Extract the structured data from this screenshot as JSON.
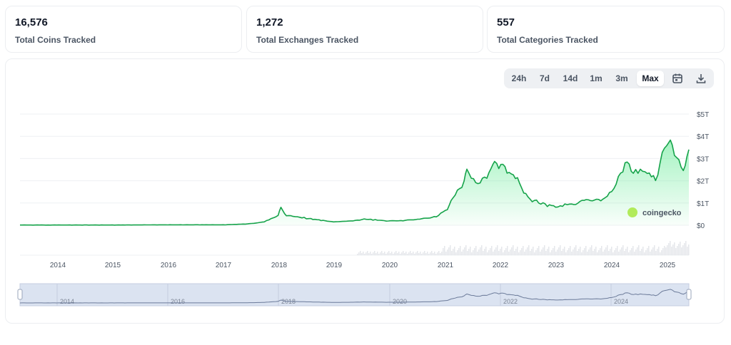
{
  "stats": [
    {
      "value": "16,576",
      "label": "Total Coins Tracked"
    },
    {
      "value": "1,272",
      "label": "Total Exchanges Tracked"
    },
    {
      "value": "557",
      "label": "Total Categories Tracked"
    }
  ],
  "toolbar": {
    "ranges": [
      "24h",
      "7d",
      "14d",
      "1m",
      "3m",
      "Max"
    ],
    "active": "Max",
    "icons": [
      "calendar-icon",
      "download-icon"
    ]
  },
  "watermark": {
    "text": "coingecko",
    "icon": "gecko-logo-icon"
  },
  "colors": {
    "line": "#16a34a",
    "fill": "#86efac",
    "navigator_bg": "#dbe3f1",
    "grid": "#eef0f3"
  },
  "chart_data": {
    "type": "area",
    "title": "",
    "xlabel": "",
    "ylabel": "",
    "y_unit": "USD",
    "ylim": [
      0,
      5
    ],
    "y_tick_labels": [
      "$0",
      "$1T",
      "$2T",
      "$3T",
      "$4T",
      "$5T"
    ],
    "x_tick_labels": [
      "2014",
      "2015",
      "2016",
      "2017",
      "2018",
      "2019",
      "2020",
      "2021",
      "2022",
      "2023",
      "2024",
      "2025"
    ],
    "grid": true,
    "legend": "none",
    "series": [
      {
        "x": [
          2013.3,
          2014.0,
          2015.0,
          2016.0,
          2017.0,
          2017.4,
          2017.7,
          2017.95,
          2018.0,
          2018.1,
          2018.5,
          2018.95,
          2019.3,
          2019.5,
          2019.9,
          2020.2,
          2020.5,
          2020.8,
          2021.0,
          2021.1,
          2021.3,
          2021.35,
          2021.55,
          2021.75,
          2021.85,
          2022.0,
          2022.15,
          2022.3,
          2022.45,
          2022.8,
          2022.95,
          2023.2,
          2023.5,
          2023.8,
          2024.0,
          2024.2,
          2024.35,
          2024.6,
          2024.75,
          2024.95,
          2025.05,
          2025.25,
          2025.35
        ],
        "values": [
          0.01,
          0.01,
          0.01,
          0.02,
          0.02,
          0.06,
          0.15,
          0.45,
          0.75,
          0.45,
          0.3,
          0.15,
          0.2,
          0.28,
          0.2,
          0.2,
          0.28,
          0.4,
          0.75,
          1.2,
          2.0,
          2.35,
          1.8,
          2.4,
          2.9,
          2.6,
          2.3,
          1.9,
          1.2,
          0.9,
          0.85,
          0.95,
          1.1,
          1.1,
          1.6,
          2.8,
          2.5,
          2.3,
          2.05,
          3.8,
          3.5,
          2.6,
          3.4
        ]
      }
    ]
  }
}
